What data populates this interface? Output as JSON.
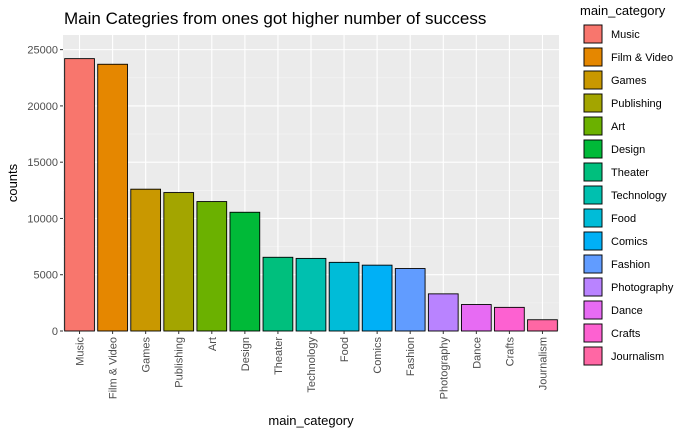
{
  "chart_data": {
    "type": "bar",
    "title": "Main Categries from ones got higher number of success",
    "xlabel": "main_category",
    "ylabel": "counts",
    "ylim": [
      0,
      26300
    ],
    "y_ticks": [
      0,
      5000,
      10000,
      15000,
      20000,
      25000
    ],
    "y_tick_labels": [
      "0",
      "5000",
      "10000",
      "15000",
      "20000",
      "25000"
    ],
    "categories": [
      "Music",
      "Film & Video",
      "Games",
      "Publishing",
      "Art",
      "Design",
      "Theater",
      "Technology",
      "Food",
      "Comics",
      "Fashion",
      "Photography",
      "Dance",
      "Crafts",
      "Journalism"
    ],
    "values": [
      24200,
      23700,
      12600,
      12300,
      11500,
      10550,
      6550,
      6450,
      6100,
      5850,
      5550,
      3300,
      2350,
      2100,
      1000
    ],
    "colors": [
      "#F8766D",
      "#E58700",
      "#C99800",
      "#A3A500",
      "#6BB100",
      "#00BA38",
      "#00BF7D",
      "#00C0AF",
      "#00BCD8",
      "#00B0F6",
      "#619CFF",
      "#B983FF",
      "#E76BF3",
      "#FD61D1",
      "#FF67A4"
    ],
    "grid": true,
    "legend": {
      "title": "main_category",
      "position": "right",
      "items": [
        "Music",
        "Film & Video",
        "Games",
        "Publishing",
        "Art",
        "Design",
        "Theater",
        "Technology",
        "Food",
        "Comics",
        "Fashion",
        "Photography",
        "Dance",
        "Crafts",
        "Journalism"
      ]
    }
  }
}
